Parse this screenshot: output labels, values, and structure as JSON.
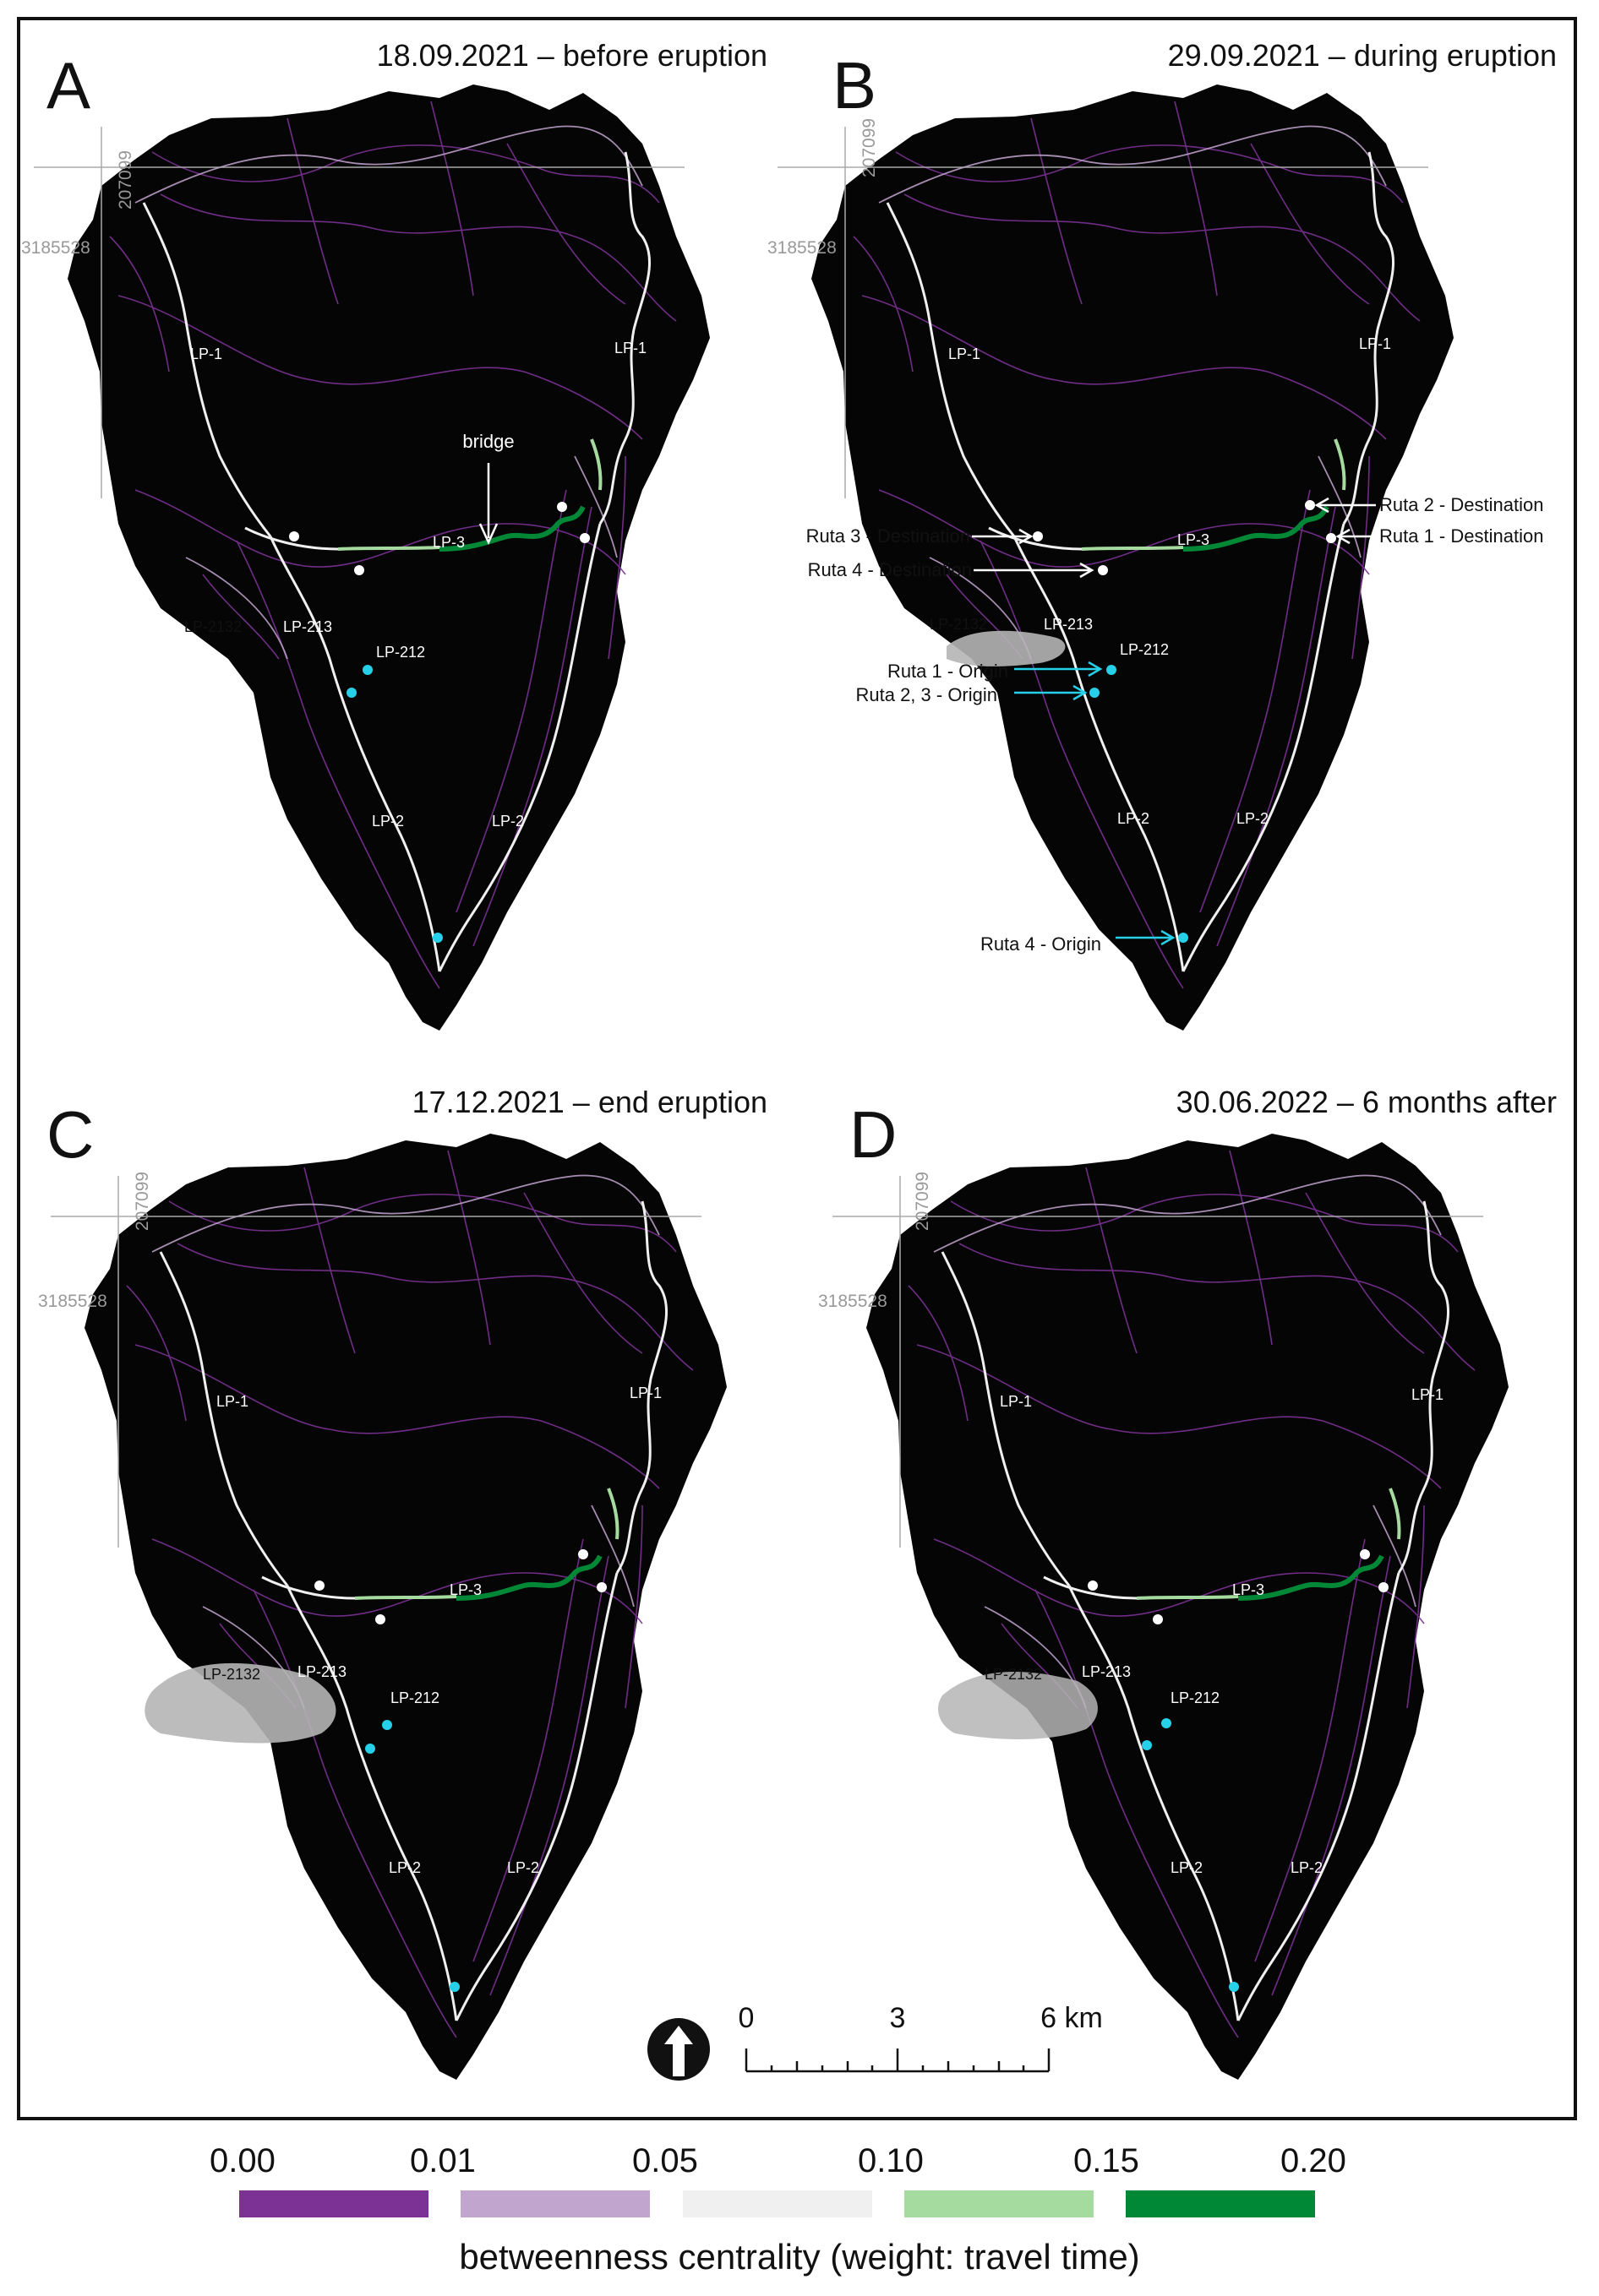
{
  "panels": [
    {
      "letter": "A",
      "title": "18.09.2021 – before eruption",
      "coords": {
        "easting": "207099",
        "northing": "3185528"
      },
      "roads": {
        "lp1_west": "LP-1",
        "lp1_east": "LP-1",
        "lp3": "LP-3",
        "lp2132": "LP-2132",
        "lp213": "LP-213",
        "lp212": "LP-212",
        "lp2_west": "LP-2",
        "lp2_east": "LP-2"
      },
      "annotation": "bridge"
    },
    {
      "letter": "B",
      "title": "29.09.2021 – during eruption",
      "coords": {
        "easting": "207099",
        "northing": "3185528"
      },
      "roads": {
        "lp1_west": "LP-1",
        "lp1_east": "LP-1",
        "lp3": "LP-3",
        "lp2132": "LP-2132",
        "lp213": "LP-213",
        "lp212": "LP-212",
        "lp2_west": "LP-2",
        "lp2_east": "LP-2"
      },
      "routes": {
        "r3_dest": "Ruta 3 - Destination",
        "r4_dest": "Ruta 4 - Destination",
        "r2_dest": "Ruta 2 - Destination",
        "r1_dest": "Ruta 1 - Destination",
        "r1_orig": "Ruta 1 - Origin",
        "r23_orig": "Ruta 2, 3 - Origin",
        "r4_orig": "Ruta 4 - Origin"
      }
    },
    {
      "letter": "C",
      "title": "17.12.2021 – end eruption",
      "coords": {
        "easting": "207099",
        "northing": "3185528"
      },
      "roads": {
        "lp1_west": "LP-1",
        "lp1_east": "LP-1",
        "lp3": "LP-3",
        "lp2132": "LP-2132",
        "lp213": "LP-213",
        "lp212": "LP-212",
        "lp2_west": "LP-2",
        "lp2_east": "LP-2"
      }
    },
    {
      "letter": "D",
      "title": "30.06.2022 – 6 months after",
      "coords": {
        "easting": "207099",
        "northing": "3185528"
      },
      "roads": {
        "lp1_west": "LP-1",
        "lp1_east": "LP-1",
        "lp3": "LP-3",
        "lp2132": "LP-2132",
        "lp213": "LP-213",
        "lp212": "LP-212",
        "lp2_west": "LP-2",
        "lp2_east": "LP-2"
      }
    }
  ],
  "scale_bar": {
    "labels": [
      "0",
      "3",
      "6 km"
    ]
  },
  "legend": {
    "title": "betweenness centrality (weight: travel time)",
    "ticks": [
      "0.00",
      "0.01",
      "0.05",
      "0.10",
      "0.15",
      "0.20"
    ],
    "colors": [
      "#7b3294",
      "#c2a5cf",
      "#f0f0f0",
      "#a6dba0",
      "#008837"
    ]
  },
  "colors": {
    "island": "#050505",
    "lava": "#b5b5b5",
    "origin_marker": "#25d0e8",
    "destination_marker": "#ffffff"
  }
}
